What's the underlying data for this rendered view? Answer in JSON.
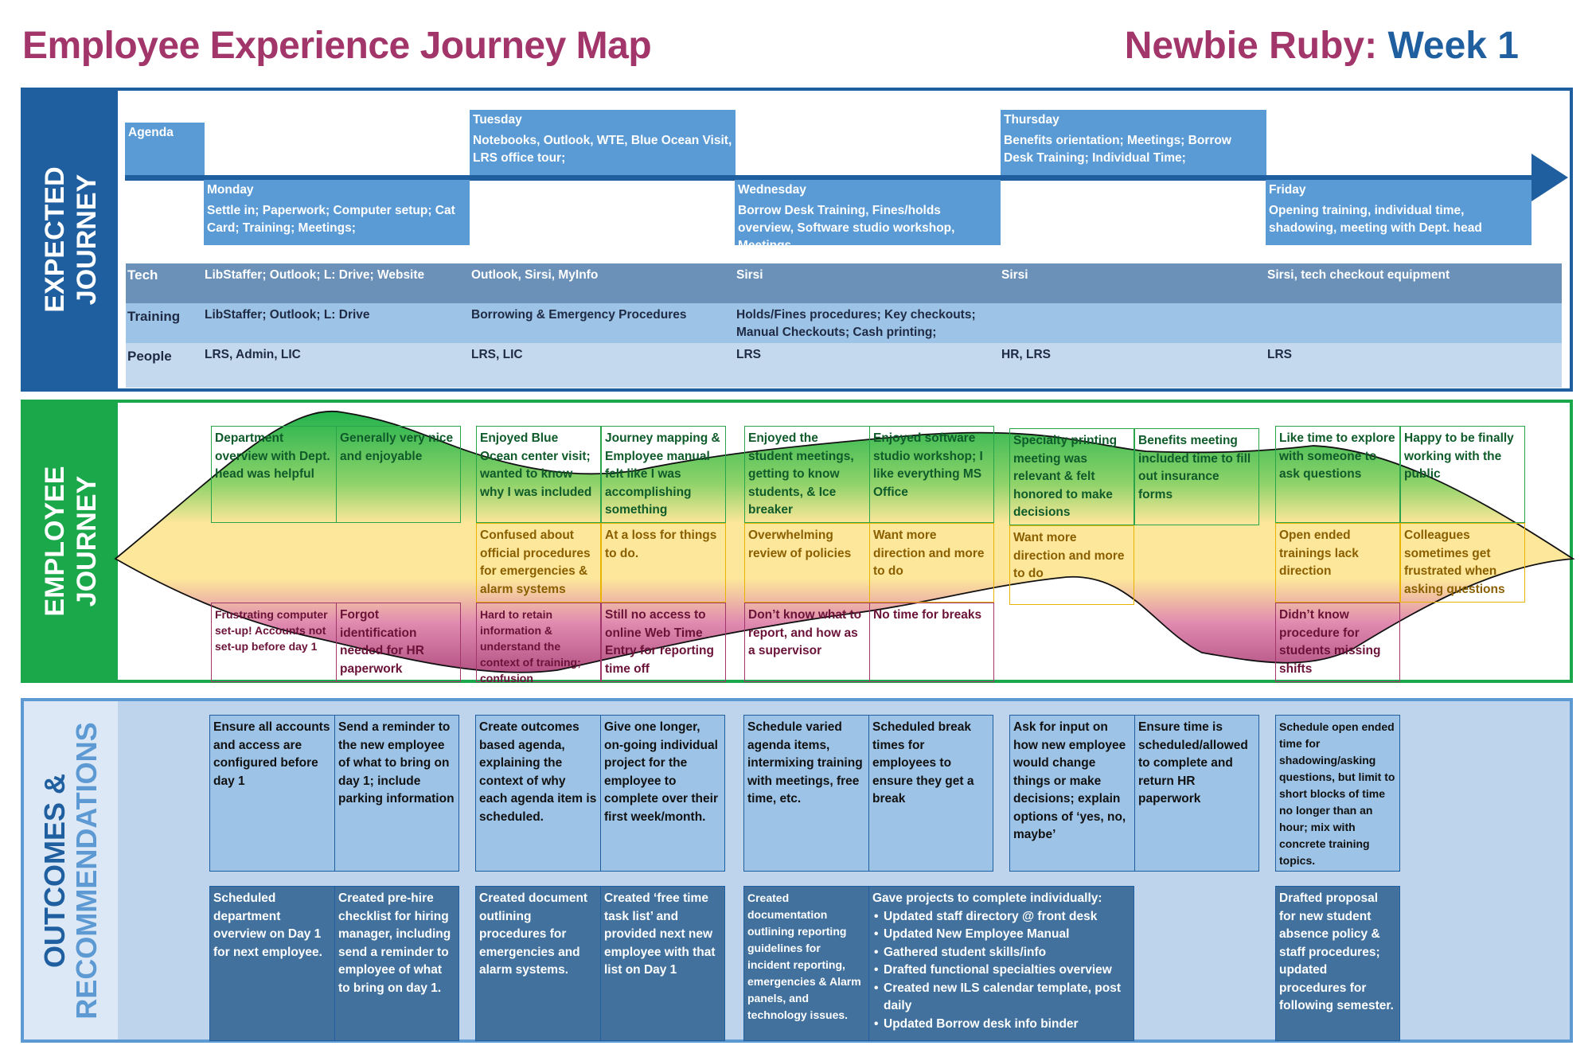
{
  "title": {
    "left": "Employee Experience Journey Map",
    "right_prefix": "Newbie Ruby:",
    "right_week": "Week 1"
  },
  "expected": {
    "side_line1": "EXPECTED",
    "side_line2": "JOURNEY",
    "agenda_label": "Agenda",
    "days": {
      "monday": {
        "name": "Monday",
        "text": "Settle in; Paperwork; Computer setup; Cat Card; Training; Meetings;"
      },
      "tuesday": {
        "name": "Tuesday",
        "text": "Notebooks, Outlook, WTE, Blue Ocean Visit, LRS office tour;"
      },
      "wednesday": {
        "name": "Wednesday",
        "text": "Borrow Desk Training, Fines/holds overview, Software studio workshop, Meetings"
      },
      "thursday": {
        "name": "Thursday",
        "text": "Benefits orientation; Meetings; Borrow Desk Training; Individual Time;"
      },
      "friday": {
        "name": "Friday",
        "text": "Opening training, individual time, shadowing, meeting with Dept. head"
      }
    },
    "tech": {
      "label": "Tech",
      "mon": "LibStaffer; Outlook; L: Drive; Website",
      "tue": "Outlook, Sirsi, MyInfo",
      "wed": "Sirsi",
      "thu": "Sirsi",
      "fri": "Sirsi, tech checkout equipment"
    },
    "training": {
      "label": "Training",
      "mon": "LibStaffer; Outlook; L: Drive",
      "tue": "Borrowing & Emergency Procedures",
      "wed": "Holds/Fines procedures; Key checkouts; Manual Checkouts; Cash printing;",
      "thu": "",
      "fri": ""
    },
    "people": {
      "label": "People",
      "mon": "LRS, Admin, LIC",
      "tue": "LRS, LIC",
      "wed": "LRS",
      "thu": "HR, LRS",
      "fri": "LRS"
    }
  },
  "employee": {
    "side_line1": "EMPLOYEE",
    "side_line2": "JOURNEY",
    "positive": [
      "Department overview with Dept. head was helpful",
      "Generally very nice and enjoyable",
      "Enjoyed Blue Ocean center visit; wanted to know why I was included",
      "Journey mapping & Employee manual felt like I was accomplishing something",
      "Enjoyed the student meetings, getting to know students, & Ice breaker",
      "Enjoyed software studio workshop; I like everything MS Office",
      "Specialty printing meeting was relevant & felt honored to make decisions",
      "Benefits meeting included time to fill out insurance forms",
      "Like time to explore with someone to ask questions",
      "Happy to be finally working with the public"
    ],
    "neutral": [
      "Confused about official procedures for emergencies & alarm systems",
      "At a loss for things to do.",
      "Overwhelming review of policies",
      "Want more direction and more to do",
      "Want more direction and more to do",
      "Open ended trainings lack direction",
      "Colleagues sometimes get frustrated when asking questions"
    ],
    "negative": [
      "Frustrating computer set-up! Accounts not set-up before day 1",
      "Forgot identification needed for HR paperwork",
      "Hard to retain information & understand the context of training; confusion",
      "Still no access to online Web Time Entry for reporting time off",
      "Don’t know what to report, and how as a supervisor",
      "No time for breaks",
      "Didn’t know procedure for students missing shifts"
    ]
  },
  "outcomes": {
    "side_line1": "OUTCOMES &",
    "side_line2": "RECOMMENDATIONS",
    "recommendations": [
      "Ensure all accounts and access are configured before day 1",
      "Send a reminder to the new employee of what to bring on day 1; include parking information",
      "Create outcomes based agenda, explaining the context of why each agenda item is scheduled.",
      "Give one longer, on-going individual project for the employee to complete over their first week/month.",
      "Schedule varied agenda items, intermixing training with meetings, free time, etc.",
      "Scheduled break times for employees to ensure they get a break",
      "Ask for input on how new employee would change things or make decisions; explain options of ‘yes, no, maybe’",
      "Ensure time is scheduled/allowed to complete and return HR paperwork",
      "Schedule open ended time for shadowing/asking questions, but limit to short blocks of time no longer than an hour; mix with concrete training topics."
    ],
    "outcomes": [
      "Scheduled department overview on Day 1 for next employee.",
      "Created pre-hire checklist for hiring manager, including send a reminder to employee of what to bring on day 1.",
      "Created document outlining procedures for emergencies and alarm systems.",
      "Created ‘free time task list’ and provided next new employee with that list on Day 1",
      "Created documentation outlining reporting guidelines for incident reporting, emergencies & Alarm panels, and technology issues.",
      "Drafted proposal for new student absence policy & staff procedures; updated procedures for following semester."
    ],
    "projects_heading": "Gave projects to complete individually:",
    "projects": [
      "Updated staff directory @ front desk",
      "Updated New Employee Manual",
      "Gathered student skills/info",
      "Drafted functional specialties overview",
      "Created new ILS calendar template, post daily",
      "Updated Borrow desk info binder"
    ]
  },
  "colors": {
    "title": "#a2356a",
    "week": "#1f5fa0",
    "expected": "#1f5fa0",
    "employee": "#1aa84a",
    "outcomes": "#5d9ad3",
    "positive": "#2aa44a",
    "neutral": "#e8b400",
    "negative": "#a2356a"
  }
}
